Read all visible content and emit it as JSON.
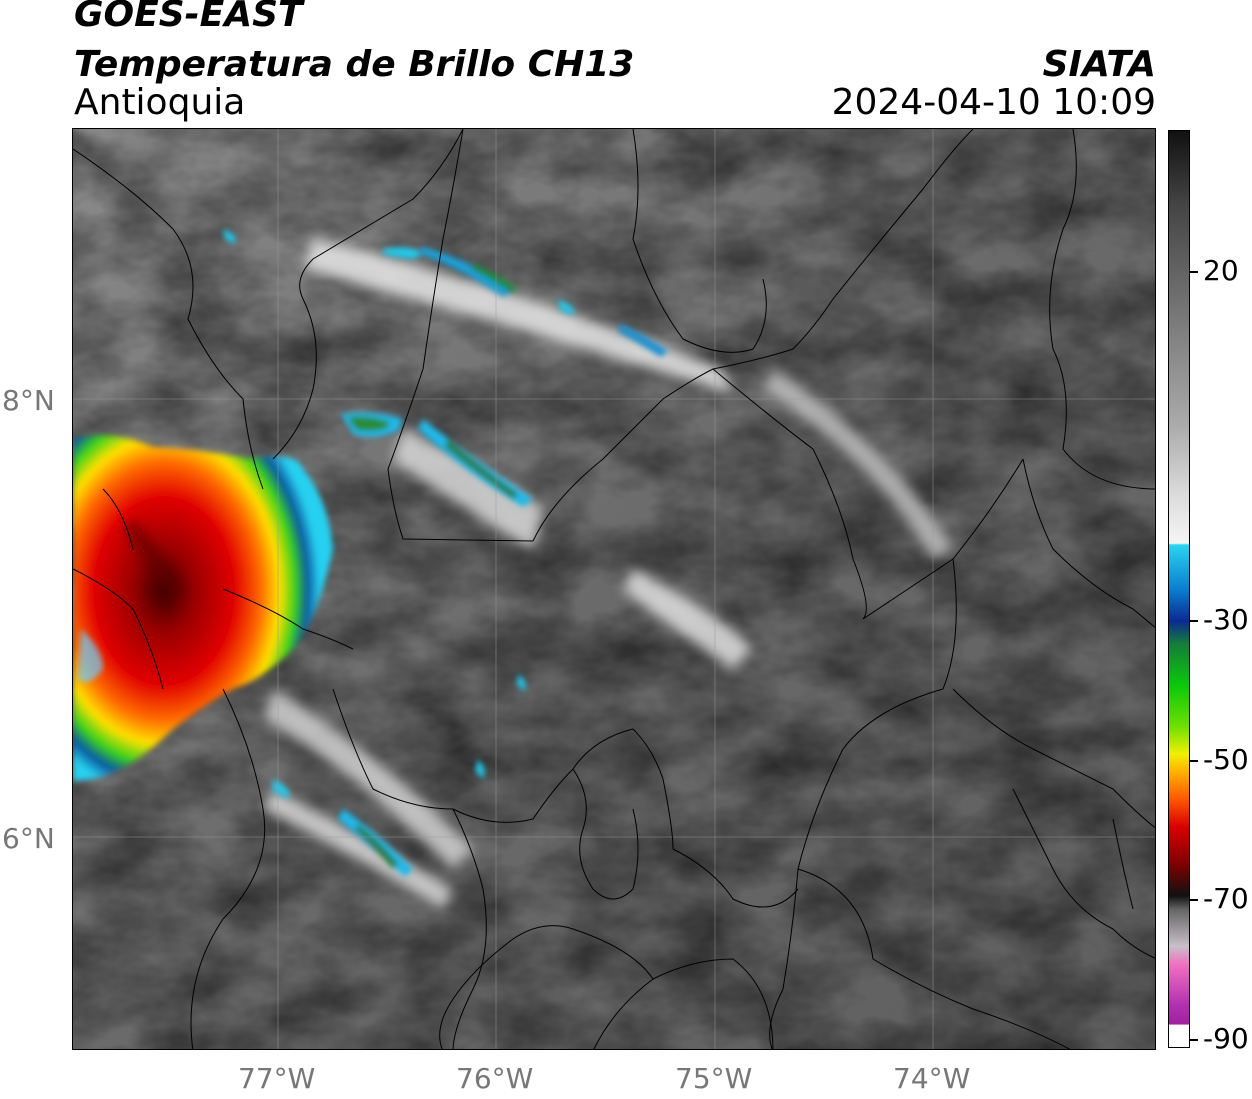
{
  "header": {
    "satellite": "GOES-EAST",
    "product": "Temperatura de Brillo CH13",
    "region": "Antioquia",
    "agency": "SIATA",
    "datetime": "2024-04-10 10:09"
  },
  "map": {
    "latitude_labels": [
      "8°N",
      "6°N"
    ],
    "longitude_labels": [
      "77°W",
      "76°W",
      "75°W",
      "74°W"
    ]
  },
  "colorbar": {
    "tick_labels": [
      "20",
      "-30",
      "-50",
      "-70",
      "-90"
    ],
    "tick_values": [
      20,
      -30,
      -50,
      -70,
      -90
    ],
    "colors": {
      "warm": "#111111",
      "neutral": "#f5f5f5",
      "cyan": "#2ad4ef",
      "blue": "#0a2a90",
      "green": "#0ac80a",
      "yellow": "#f0f000",
      "orange": "#ff5500",
      "red": "#d80000",
      "darkred": "#800000",
      "magenta": "#b030b0"
    }
  }
}
